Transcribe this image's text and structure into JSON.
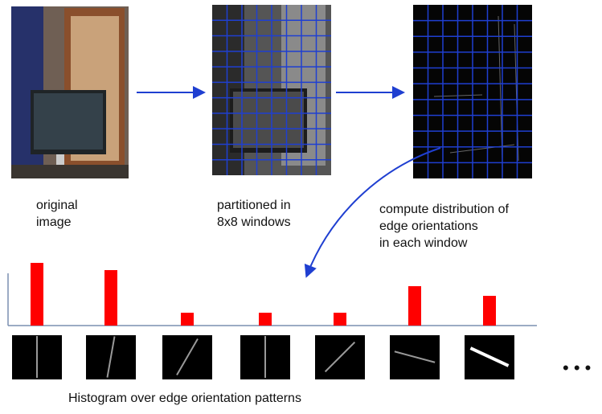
{
  "labels": {
    "original": [
      "original",
      "image"
    ],
    "partitioned": [
      "partitioned in",
      "8x8 windows"
    ],
    "compute": [
      "compute distribution of",
      "edge orientations",
      "in each window"
    ]
  },
  "histogram": {
    "values": [
      78,
      69,
      16,
      16,
      16,
      49,
      37
    ],
    "color": "#ff0000"
  },
  "caption": "Histogram over edge orientation patterns",
  "ellipsis": "• • •"
}
